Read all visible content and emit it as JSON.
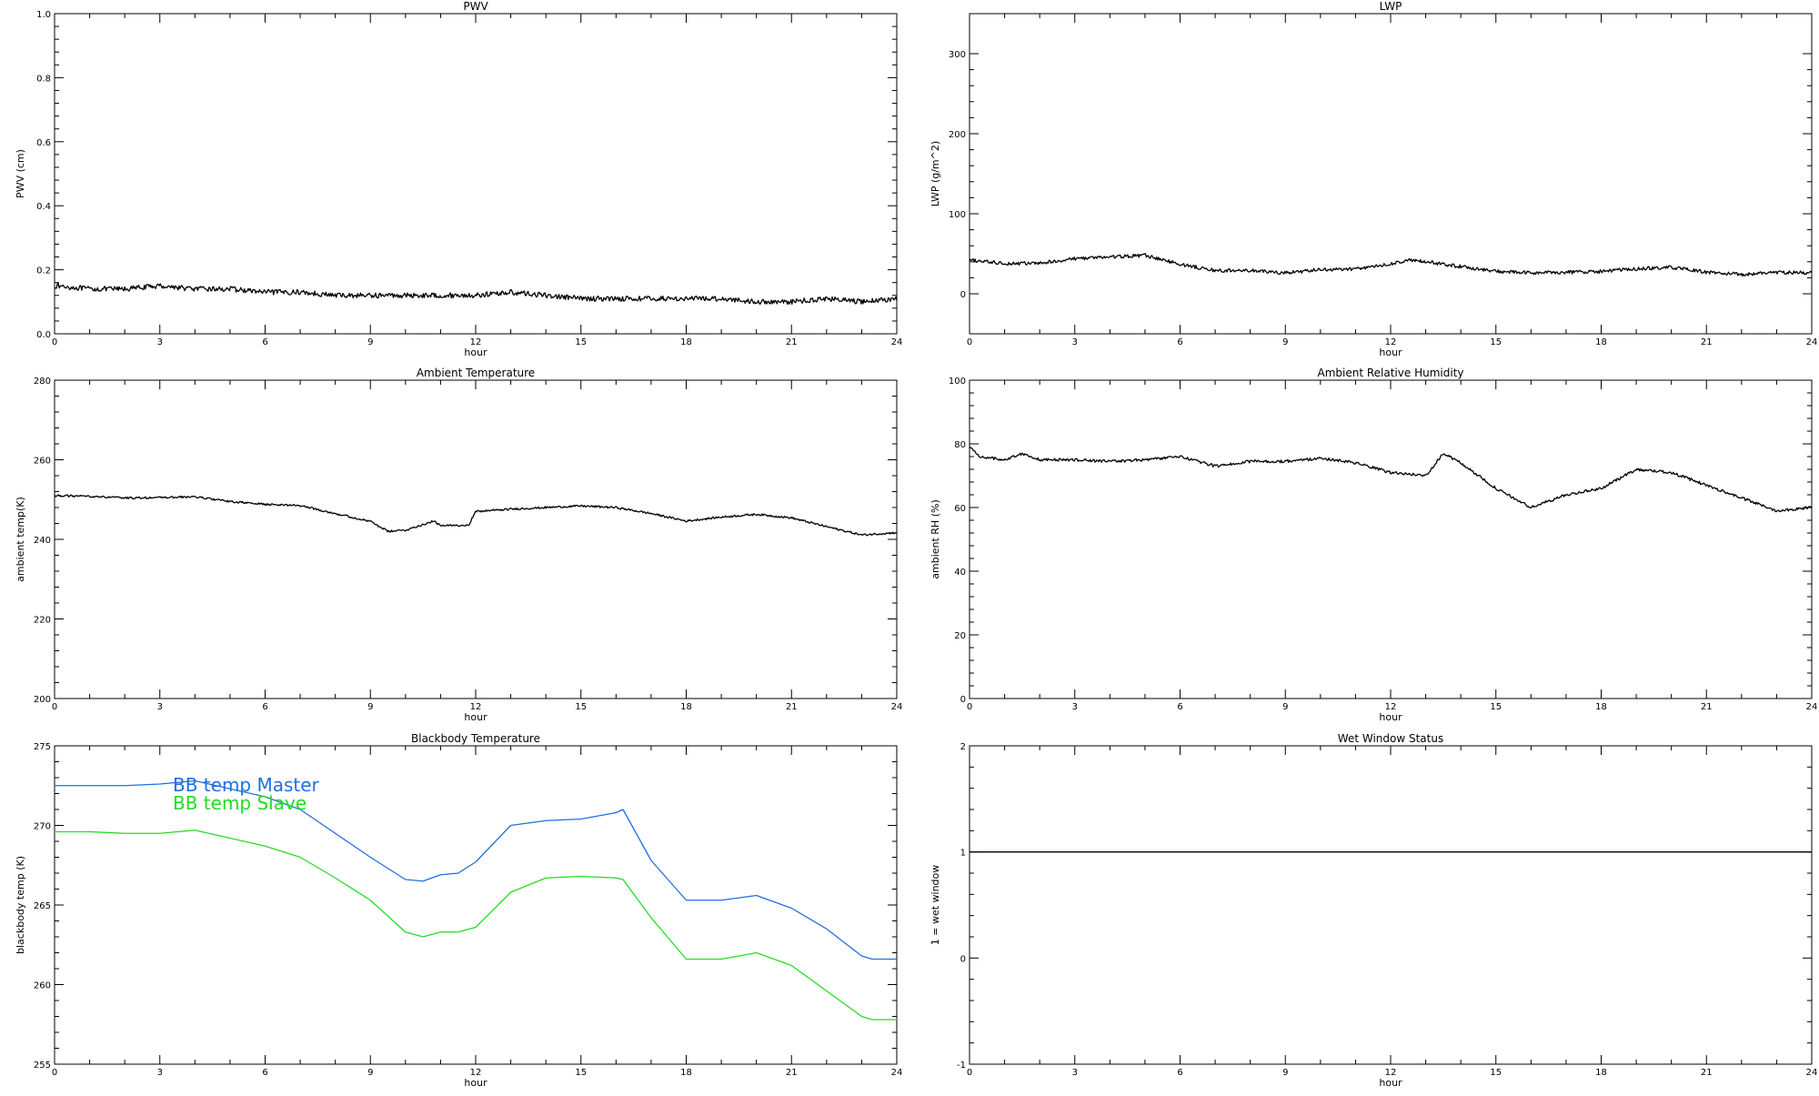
{
  "chart_data": [
    {
      "id": "pwv",
      "type": "line",
      "title": "PWV",
      "xlabel": "hour",
      "ylabel": "PWV (cm)",
      "xlim": [
        0,
        24
      ],
      "ylim": [
        0,
        1.0
      ],
      "xticks": [
        0,
        3,
        6,
        9,
        12,
        15,
        18,
        21,
        24
      ],
      "yticks": [
        "0.0",
        "0.2",
        "0.4",
        "0.6",
        "0.8",
        "1.0"
      ],
      "grid": false,
      "noise": 0.008,
      "series": [
        {
          "color": "#000000",
          "x": [
            0,
            1,
            2,
            3,
            4,
            5,
            6,
            7,
            8,
            9,
            10,
            11,
            12,
            13,
            14,
            15,
            16,
            17,
            18,
            19,
            20,
            21,
            22,
            23,
            24
          ],
          "y": [
            0.15,
            0.14,
            0.14,
            0.15,
            0.14,
            0.14,
            0.13,
            0.13,
            0.12,
            0.12,
            0.12,
            0.12,
            0.12,
            0.13,
            0.12,
            0.11,
            0.11,
            0.11,
            0.11,
            0.11,
            0.1,
            0.1,
            0.11,
            0.1,
            0.11
          ]
        }
      ]
    },
    {
      "id": "lwp",
      "type": "line",
      "title": "LWP",
      "xlabel": "hour",
      "ylabel": "LWP (g/m^2)",
      "xlim": [
        0,
        24
      ],
      "ylim": [
        -50,
        350
      ],
      "xticks": [
        0,
        3,
        6,
        9,
        12,
        15,
        18,
        21,
        24
      ],
      "yticks": [
        "0",
        "100",
        "200",
        "300"
      ],
      "grid": false,
      "noise": 2.2,
      "series": [
        {
          "color": "#000000",
          "x": [
            0,
            1,
            2,
            3,
            4,
            5,
            6,
            7,
            8,
            9,
            10,
            11,
            12,
            12.5,
            13,
            14,
            15,
            16,
            17,
            18,
            19,
            20,
            21,
            22,
            23,
            24
          ],
          "y": [
            42,
            38,
            38,
            44,
            46,
            48,
            37,
            29,
            29,
            26,
            30,
            31,
            37,
            42,
            40,
            34,
            28,
            26,
            27,
            28,
            31,
            33,
            27,
            24,
            27,
            26
          ]
        }
      ]
    },
    {
      "id": "ambient-temp",
      "type": "line",
      "title": "Ambient Temperature",
      "xlabel": "hour",
      "ylabel": "ambient temp(K)",
      "xlim": [
        0,
        24
      ],
      "ylim": [
        200,
        280
      ],
      "xticks": [
        0,
        3,
        6,
        9,
        12,
        15,
        18,
        21,
        24
      ],
      "yticks": [
        "200",
        "220",
        "240",
        "260",
        "280"
      ],
      "grid": false,
      "noise": 0.25,
      "series": [
        {
          "color": "#000000",
          "x": [
            0,
            1,
            2,
            3,
            4,
            5,
            6,
            7,
            8,
            9,
            9.5,
            10,
            10.8,
            11,
            11.8,
            12,
            13,
            14,
            15,
            16,
            17,
            18,
            19,
            20,
            21,
            22,
            23,
            24
          ],
          "y": [
            251,
            250.8,
            250.4,
            250.5,
            250.7,
            249.5,
            248.8,
            248.5,
            246.5,
            244.5,
            242,
            242.3,
            244.6,
            243.4,
            243.6,
            247,
            247.6,
            248,
            248.4,
            248,
            246.5,
            244.6,
            245.6,
            246.3,
            245.4,
            243.2,
            241.1,
            241.7
          ]
        }
      ]
    },
    {
      "id": "ambient-rh",
      "type": "line",
      "title": "Ambient Relative Humidity",
      "xlabel": "hour",
      "ylabel": "ambient RH (%)",
      "xlim": [
        0,
        24
      ],
      "ylim": [
        0,
        100
      ],
      "xticks": [
        0,
        3,
        6,
        9,
        12,
        15,
        18,
        21,
        24
      ],
      "yticks": [
        "0",
        "20",
        "40",
        "60",
        "80",
        "100"
      ],
      "grid": false,
      "noise": 0.45,
      "series": [
        {
          "color": "#000000",
          "x": [
            0,
            0.3,
            1,
            1.5,
            2,
            3,
            4,
            5,
            6,
            7,
            8,
            9,
            10,
            11,
            12,
            13,
            13.5,
            14,
            15,
            16,
            16.5,
            17,
            18,
            19,
            20,
            21,
            22,
            23,
            24
          ],
          "y": [
            79,
            76,
            75,
            77,
            75,
            75,
            74.5,
            75,
            76,
            73,
            74.5,
            74.5,
            75.5,
            74,
            71,
            70,
            77,
            74,
            66,
            60,
            62,
            64,
            66,
            72,
            71,
            67,
            63,
            59,
            60
          ]
        }
      ]
    },
    {
      "id": "bb-temp",
      "type": "line",
      "title": "Blackbody Temperature",
      "xlabel": "hour",
      "ylabel": "blackbody temp (K)",
      "xlim": [
        0,
        24
      ],
      "ylim": [
        255,
        275
      ],
      "xticks": [
        0,
        3,
        6,
        9,
        12,
        15,
        18,
        21,
        24
      ],
      "yticks": [
        "255",
        "260",
        "265",
        "270",
        "275"
      ],
      "grid": false,
      "noise": 0,
      "legend": "top-left",
      "series": [
        {
          "name": "BB temp Master",
          "color": "#1f6fe0",
          "x": [
            0,
            1,
            2,
            3,
            4,
            5,
            6,
            7,
            8,
            9,
            10,
            10.5,
            11,
            11.5,
            12,
            13,
            14,
            15,
            16,
            16.2,
            17,
            18,
            19,
            20,
            21,
            22,
            23,
            23.3,
            24
          ],
          "y": [
            272.5,
            272.5,
            272.5,
            272.6,
            272.8,
            272.3,
            271.8,
            271,
            269.5,
            268,
            266.6,
            266.5,
            266.9,
            267,
            267.7,
            270,
            270.3,
            270.4,
            270.8,
            271,
            267.8,
            265.3,
            265.3,
            265.6,
            264.8,
            263.5,
            261.8,
            261.6,
            261.6
          ]
        },
        {
          "name": "BB temp Slave",
          "color": "#22dd22",
          "x": [
            0,
            1,
            2,
            3,
            4,
            5,
            6,
            7,
            8,
            9,
            10,
            10.5,
            11,
            11.5,
            12,
            13,
            14,
            15,
            16,
            16.2,
            17,
            18,
            19,
            20,
            21,
            22,
            23,
            23.3,
            24
          ],
          "y": [
            269.6,
            269.6,
            269.5,
            269.5,
            269.7,
            269.2,
            268.7,
            268,
            266.7,
            265.3,
            263.3,
            263,
            263.3,
            263.3,
            263.6,
            265.8,
            266.7,
            266.8,
            266.7,
            266.6,
            264.2,
            261.6,
            261.6,
            262,
            261.2,
            259.6,
            258,
            257.8,
            257.8
          ]
        }
      ]
    },
    {
      "id": "wet-window",
      "type": "line",
      "title": "Wet Window Status",
      "xlabel": "hour",
      "ylabel": "1 = wet window",
      "xlim": [
        0,
        24
      ],
      "ylim": [
        -1,
        2
      ],
      "xticks": [
        0,
        3,
        6,
        9,
        12,
        15,
        18,
        21,
        24
      ],
      "yticks": [
        "-1",
        "0",
        "1",
        "2"
      ],
      "grid": false,
      "noise": 0,
      "series": [
        {
          "color": "#000000",
          "x": [
            0,
            24
          ],
          "y": [
            1,
            1
          ]
        }
      ]
    }
  ]
}
